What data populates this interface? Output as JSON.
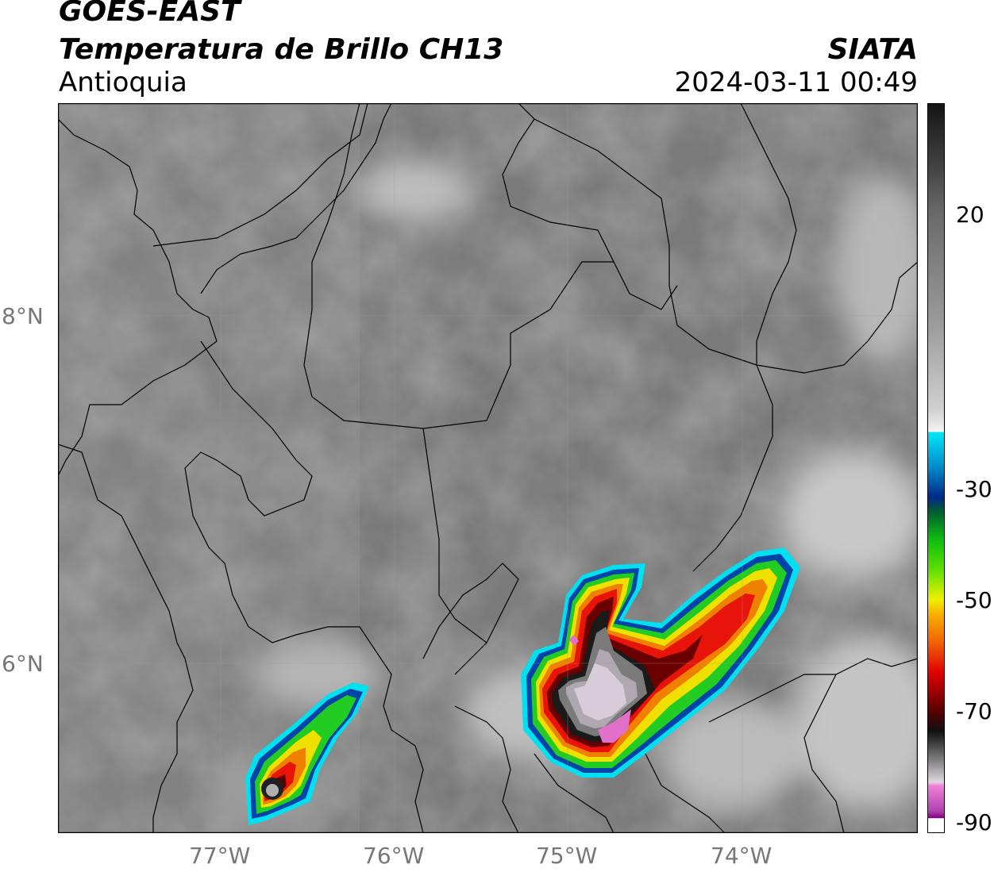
{
  "header": {
    "satellite": "GOES-EAST",
    "product": "Temperatura de Brillo CH13",
    "region": "Antioquia",
    "organization": "SIATA",
    "timestamp": "2024-03-11 00:49"
  },
  "map": {
    "lat_labels": [
      "8°N",
      "6°N"
    ],
    "lon_labels": [
      "77°W",
      "76°W",
      "75°W",
      "74°W"
    ]
  },
  "colorbar": {
    "tick_labels": [
      "20",
      "-30",
      "-50",
      "-70",
      "-90"
    ]
  },
  "colors": {
    "background_gray": "#777777",
    "warm_cloud_gray": "#cccccc",
    "cold_top_red": "#e8140a",
    "cold_top_yellow": "#f0e000",
    "cold_top_green": "#22cc22",
    "cold_top_blue": "#0044aa",
    "cold_top_cyan": "#00e0f0",
    "coldest_pink": "#e070c8",
    "coldest_magenta": "#a000a0"
  }
}
